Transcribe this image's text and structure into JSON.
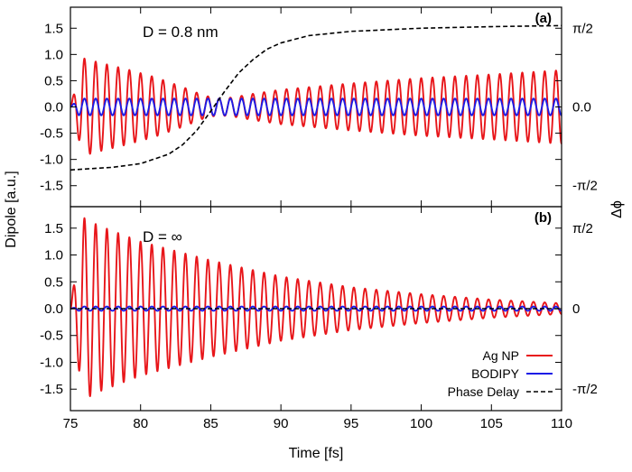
{
  "colors": {
    "ag_np": "#e8161a",
    "bodipy": "#1c1ce6",
    "phase": "#000000",
    "axis": "#000000"
  },
  "chart_data": [
    {
      "type": "line",
      "panel": "(a)",
      "annotation": "D = 0.8 nm",
      "xlabel": "Time [fs]",
      "ylabel": "Dipole [a.u.]",
      "y2label": "Δϕ",
      "xlim": [
        75,
        110
      ],
      "ylim": [
        -1.9,
        1.9
      ],
      "x_ticks": [
        75,
        80,
        85,
        90,
        95,
        100,
        105,
        110
      ],
      "y_ticks": [
        {
          "value": 1.5,
          "label": "1.5"
        },
        {
          "value": 1.0,
          "label": "1.0"
        },
        {
          "value": 0.5,
          "label": "0.5"
        },
        {
          "value": 0.0,
          "label": "0.0"
        },
        {
          "value": -0.5,
          "label": "-0.5"
        },
        {
          "value": -1.0,
          "label": "-1.0"
        },
        {
          "value": -1.5,
          "label": "-1.5"
        }
      ],
      "y2_ticks": [
        {
          "value": 1.5,
          "label": "π/2"
        },
        {
          "value": 0.0,
          "label": "0.0"
        },
        {
          "value": -1.5,
          "label": "-π/2"
        }
      ],
      "grid": false,
      "series": [
        {
          "name": "Ag NP",
          "color_key": "ag_np",
          "period_fs": 0.8,
          "envelope_t": [
            75.0,
            75.9,
            77.0,
            79.0,
            81.0,
            83.0,
            84.5,
            85.5,
            86.5,
            88.0,
            90.0,
            95.0,
            100.0,
            105.0,
            110.0
          ],
          "envelope_amp": [
            0.0,
            0.93,
            0.85,
            0.72,
            0.57,
            0.38,
            0.22,
            0.16,
            0.18,
            0.25,
            0.33,
            0.45,
            0.55,
            0.62,
            0.7
          ]
        },
        {
          "name": "BODIPY",
          "color_key": "bodipy",
          "period_fs": 0.8,
          "envelope_t": [
            75.0,
            75.6,
            110.0
          ],
          "envelope_amp": [
            0.0,
            0.16,
            0.16
          ]
        },
        {
          "name": "Phase Delay",
          "color_key": "phase",
          "dashed": true,
          "x": [
            75,
            78,
            80,
            82,
            83,
            84,
            85,
            86,
            87,
            88,
            89,
            90,
            92,
            95,
            100,
            105,
            110
          ],
          "y": [
            -1.2,
            -1.15,
            -1.08,
            -0.9,
            -0.72,
            -0.45,
            -0.08,
            0.3,
            0.65,
            0.9,
            1.1,
            1.22,
            1.36,
            1.44,
            1.5,
            1.53,
            1.55
          ]
        }
      ]
    },
    {
      "type": "line",
      "panel": "(b)",
      "annotation": "D = ∞",
      "xlabel": "Time [fs]",
      "ylabel": "Dipole [a.u.]",
      "y2label": "Δϕ",
      "xlim": [
        75,
        110
      ],
      "ylim": [
        -1.9,
        1.9
      ],
      "x_ticks": [
        75,
        80,
        85,
        90,
        95,
        100,
        105,
        110
      ],
      "y_ticks": [
        {
          "value": 1.5,
          "label": "1.5"
        },
        {
          "value": 1.0,
          "label": "1.0"
        },
        {
          "value": 0.5,
          "label": "0.5"
        },
        {
          "value": 0.0,
          "label": "0.0"
        },
        {
          "value": -0.5,
          "label": "-0.5"
        },
        {
          "value": -1.0,
          "label": "-1.0"
        },
        {
          "value": -1.5,
          "label": "-1.5"
        }
      ],
      "y2_ticks": [
        {
          "value": 1.5,
          "label": "π/2"
        },
        {
          "value": 0.0,
          "label": "0"
        },
        {
          "value": -1.5,
          "label": "-π/2"
        }
      ],
      "grid": false,
      "legend": {
        "placement": "bottom-right",
        "entries": [
          "Ag NP",
          "BODIPY",
          "Phase Delay"
        ]
      },
      "series": [
        {
          "name": "Ag NP",
          "color_key": "ag_np",
          "period_fs": 0.8,
          "envelope_t": [
            75.0,
            75.9,
            77.0,
            80.0,
            85.0,
            90.0,
            95.0,
            100.0,
            105.0,
            110.0
          ],
          "envelope_amp": [
            0.0,
            1.7,
            1.55,
            1.25,
            0.9,
            0.6,
            0.4,
            0.27,
            0.17,
            0.1
          ]
        },
        {
          "name": "BODIPY",
          "color_key": "bodipy",
          "period_fs": 0.8,
          "envelope_t": [
            75.0,
            75.6,
            110.0
          ],
          "envelope_amp": [
            0.0,
            0.04,
            0.04
          ]
        },
        {
          "name": "Phase Delay",
          "color_key": "phase",
          "dashed": true,
          "x": [
            75,
            80,
            85,
            90,
            95,
            100,
            105,
            110
          ],
          "y": [
            0,
            0,
            0,
            0,
            0,
            0,
            0,
            0
          ]
        }
      ]
    }
  ]
}
